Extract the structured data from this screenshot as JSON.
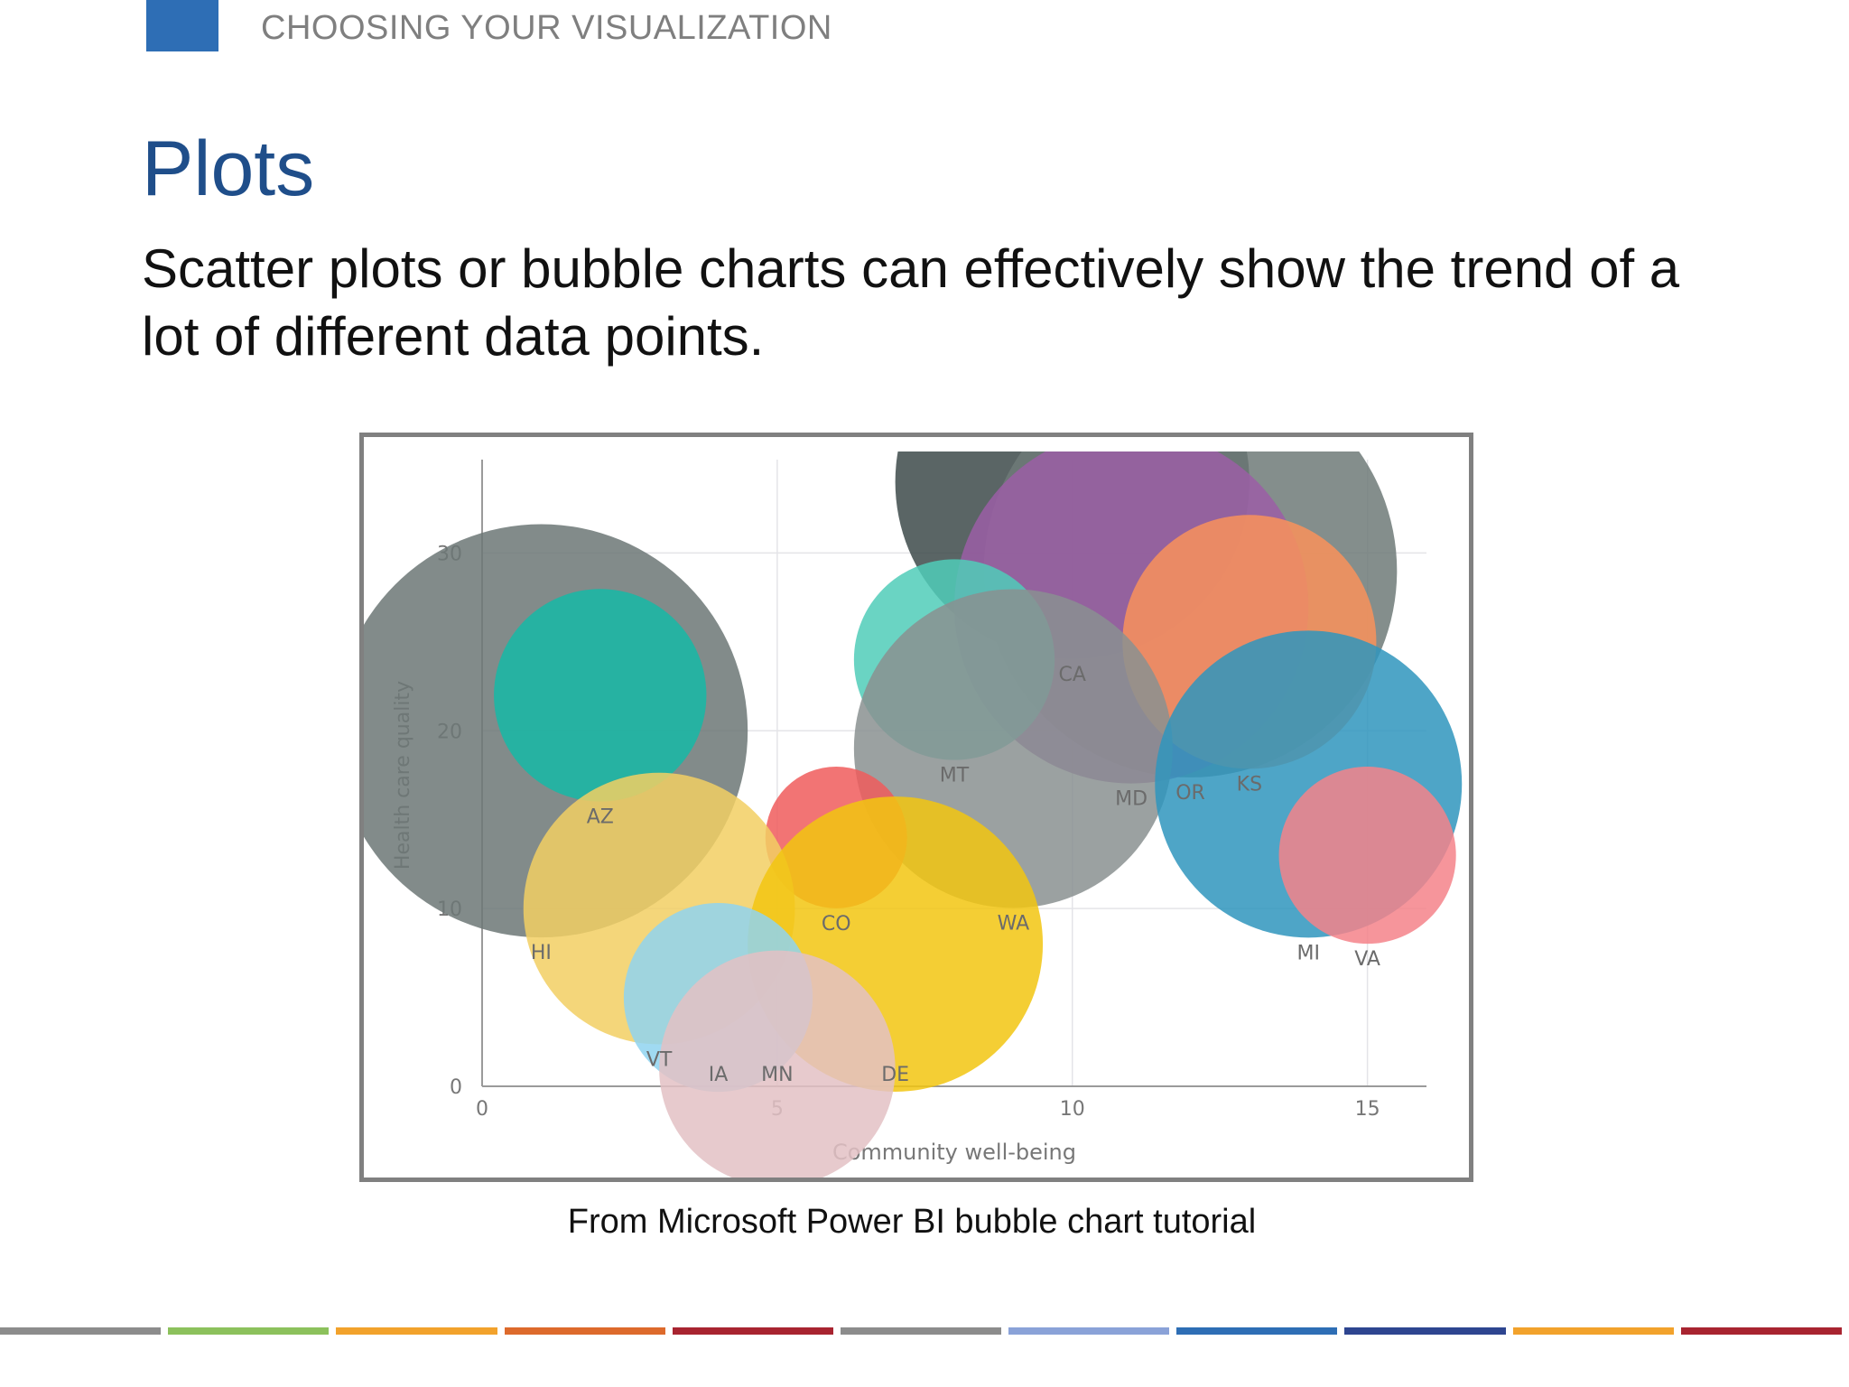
{
  "header": {
    "section_label": "CHOOSING YOUR VISUALIZATION",
    "accent_color": "#2e6eb5"
  },
  "slide": {
    "title": "Plots",
    "body": "Scatter plots or bubble charts can effectively show the trend of a lot of different data points.",
    "caption": "From Microsoft Power BI bubble chart tutorial"
  },
  "chart_data": {
    "type": "scatter",
    "subtype": "bubble",
    "title": "",
    "xlabel": "Community well-being",
    "ylabel": "Health care quality",
    "xlim": [
      0,
      16
    ],
    "ylim": [
      0,
      35
    ],
    "xticks": [
      0,
      5,
      10,
      15
    ],
    "yticks": [
      0,
      10,
      20,
      30
    ],
    "grid": true,
    "legend": "none",
    "points": [
      {
        "label": "CA",
        "x": 10,
        "y": 34,
        "size": 6.0,
        "color": "#3d4a4a"
      },
      {
        "label": "OR",
        "x": 12,
        "y": 29,
        "size": 7.0,
        "color": "#6e7a78"
      },
      {
        "label": "MD",
        "x": 11,
        "y": 27,
        "size": 6.0,
        "color": "#9b5ea6"
      },
      {
        "label": "KS",
        "x": 13,
        "y": 25,
        "size": 4.3,
        "color": "#f9925a"
      },
      {
        "label": "HI",
        "x": 1,
        "y": 20,
        "size": 7.0,
        "color": "#6c7775"
      },
      {
        "label": "AZ",
        "x": 2,
        "y": 22,
        "size": 3.6,
        "color": "#16b9a6"
      },
      {
        "label": "MT",
        "x": 8,
        "y": 24,
        "size": 3.4,
        "color": "#50cdb8"
      },
      {
        "label": "WA",
        "x": 9,
        "y": 19,
        "size": 5.4,
        "color": "#8a9090"
      },
      {
        "label": "MI",
        "x": 14,
        "y": 17,
        "size": 5.2,
        "color": "#2f95bd"
      },
      {
        "label": "VA",
        "x": 15,
        "y": 13,
        "size": 3.0,
        "color": "#f4828a"
      },
      {
        "label": "CO",
        "x": 6,
        "y": 14,
        "size": 2.4,
        "color": "#f05c5c"
      },
      {
        "label": "VT",
        "x": 3,
        "y": 10,
        "size": 4.6,
        "color": "#f2cf63"
      },
      {
        "label": "DE",
        "x": 7,
        "y": 8,
        "size": 5.0,
        "color": "#f2c511"
      },
      {
        "label": "IA",
        "x": 4,
        "y": 5,
        "size": 3.2,
        "color": "#8fd3f0"
      },
      {
        "label": "MN",
        "x": 5,
        "y": 1,
        "size": 4.0,
        "color": "#e3c1c4"
      }
    ]
  },
  "footer": {
    "colors": [
      "#8c8c8c",
      "#8cc15c",
      "#f2a22c",
      "#dd6a2c",
      "#a82430",
      "#8c8c8c",
      "#8aa2d8",
      "#2e6eb5",
      "#2e4590",
      "#f2a22c",
      "#a82430"
    ]
  }
}
